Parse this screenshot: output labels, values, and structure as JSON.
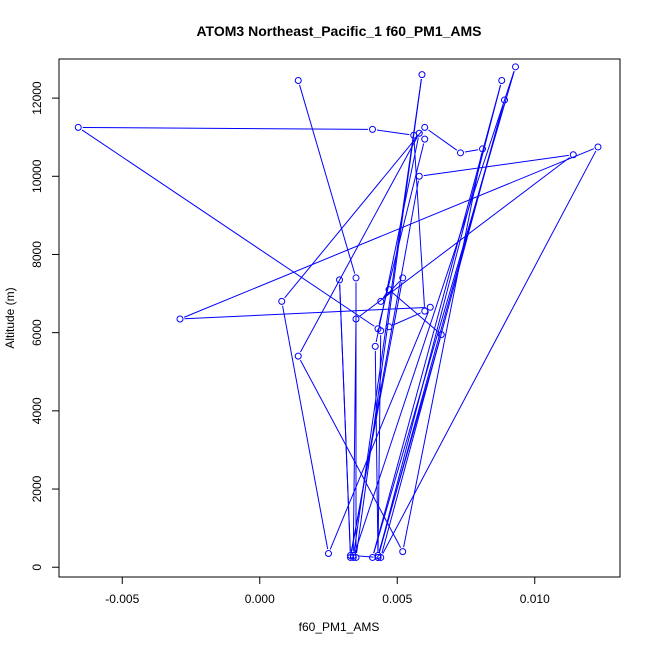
{
  "chart_data": {
    "type": "line",
    "title": "ATOM3 Northeast_Pacific_1 f60_PM1_AMS",
    "xlabel": "f60_PM1_AMS",
    "ylabel": "Altitude (m)",
    "xlim": [
      -0.0073,
      0.0131
    ],
    "ylim": [
      -250,
      13000
    ],
    "x_ticks": [
      -0.005,
      0.0,
      0.005,
      0.01
    ],
    "x_tick_labels": [
      "-0.005",
      "0.000",
      "0.005",
      "0.010"
    ],
    "y_ticks": [
      0,
      2000,
      4000,
      6000,
      8000,
      10000,
      12000
    ],
    "y_tick_labels": [
      "0",
      "2000",
      "4000",
      "6000",
      "8000",
      "10000",
      "12000"
    ],
    "grid": false,
    "legend": "none",
    "series_color": "#0000ff",
    "markers": "open-circle",
    "points": [
      {
        "x": 0.0014,
        "y": 12450
      },
      {
        "x": 0.0035,
        "y": 7400
      },
      {
        "x": 0.0035,
        "y": 250
      },
      {
        "x": 0.0059,
        "y": 12600
      },
      {
        "x": 0.0034,
        "y": 250
      },
      {
        "x": 0.0093,
        "y": 12800
      },
      {
        "x": 0.0041,
        "y": 250
      },
      {
        "x": 0.0088,
        "y": 12450
      },
      {
        "x": 0.0043,
        "y": 250
      },
      {
        "x": 0.0089,
        "y": 11950
      },
      {
        "x": 0.0044,
        "y": 250
      },
      {
        "x": 0.0123,
        "y": 10750
      },
      {
        "x": -0.0029,
        "y": 6350
      },
      {
        "x": 0.0062,
        "y": 6650
      },
      {
        "x": 0.0025,
        "y": 350
      },
      {
        "x": 0.0008,
        "y": 6800
      },
      {
        "x": 0.006,
        "y": 11250
      },
      {
        "x": 0.0073,
        "y": 10600
      },
      {
        "x": 0.0081,
        "y": 10700
      },
      {
        "x": 0.0052,
        "y": 400
      },
      {
        "x": 0.0014,
        "y": 5400
      },
      {
        "x": 0.0058,
        "y": 11100
      },
      {
        "x": 0.0042,
        "y": 5650
      },
      {
        "x": 0.0043,
        "y": 250
      },
      {
        "x": 0.0034,
        "y": 300
      },
      {
        "x": 0.0035,
        "y": 6350
      },
      {
        "x": 0.0114,
        "y": 10550
      },
      {
        "x": 0.0058,
        "y": 10000
      },
      {
        "x": 0.0033,
        "y": 250
      },
      {
        "x": 0.0029,
        "y": 7350
      },
      {
        "x": 0.0033,
        "y": 300
      },
      {
        "x": 0.0052,
        "y": 7400
      },
      {
        "x": 0.0044,
        "y": 6800
      },
      {
        "x": 0.0047,
        "y": 7100
      },
      {
        "x": 0.0066,
        "y": 5950
      },
      {
        "x": 0.0043,
        "y": 300
      },
      {
        "x": 0.0044,
        "y": 6050
      },
      {
        "x": 0.0047,
        "y": 6150
      },
      {
        "x": 0.006,
        "y": 6550
      },
      {
        "x": 0.0056,
        "y": 11050
      },
      {
        "x": 0.0041,
        "y": 11200
      },
      {
        "x": -0.0066,
        "y": 11250
      },
      {
        "x": 0.0043,
        "y": 6100
      },
      {
        "x": 0.006,
        "y": 10950
      }
    ]
  }
}
